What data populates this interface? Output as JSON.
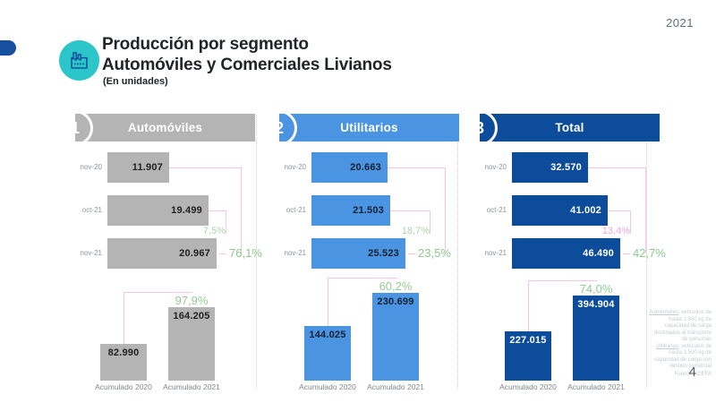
{
  "meta": {
    "year_badge": "2021",
    "page_number": "4"
  },
  "header": {
    "title_line1": "Producción por segmento",
    "title_line2": "Automóviles y Comerciales Livianos",
    "subtitle": "(En unidades)",
    "icon": "factory-icon"
  },
  "colors": {
    "gray": "#b4b4b4",
    "blue": "#4a94e2",
    "dark_blue": "#0d4c9a",
    "teal": "#2cc5c9",
    "pink_line": "#f5c3e6",
    "green": "#8cc98c",
    "green_light": "#abd4ab",
    "pink_pct": "#efa9dc"
  },
  "chart_data": [
    {
      "segment": "Automóviles",
      "number": "1",
      "color": "#b4b4b4",
      "value_text_color": "#1f1f1f",
      "monthly": {
        "type": "bar",
        "orientation": "horizontal",
        "categories": [
          "nov-20",
          "oct-21",
          "nov-21"
        ],
        "values": [
          11907,
          19499,
          20967
        ],
        "value_labels": [
          "11.907",
          "19.499",
          "20.967"
        ],
        "changes": [
          {
            "label": "7,5%",
            "from": "oct-21",
            "to": "nov-21",
            "color": "#abd4ab"
          },
          {
            "label": "76,1%",
            "from": "nov-20",
            "to": "nov-21",
            "color": "#8cc98c"
          }
        ]
      },
      "accumulated": {
        "type": "bar",
        "orientation": "vertical",
        "categories": [
          "Acumulado 2020",
          "Acumulado 2021"
        ],
        "values": [
          82990,
          164205
        ],
        "value_labels": [
          "82.990",
          "164.205"
        ],
        "change": {
          "label": "97,9%",
          "from": "Acumulado 2020",
          "to": "Acumulado 2021",
          "color": "#93cd93"
        }
      }
    },
    {
      "segment": "Utilitarios",
      "number": "2",
      "color": "#4a94e2",
      "value_text_color": "#13202e",
      "monthly": {
        "type": "bar",
        "orientation": "horizontal",
        "categories": [
          "nov-20",
          "oct-21",
          "nov-21"
        ],
        "values": [
          20663,
          21503,
          25523
        ],
        "value_labels": [
          "20.663",
          "21.503",
          "25.523"
        ],
        "changes": [
          {
            "label": "18,7%",
            "from": "oct-21",
            "to": "nov-21",
            "color": "#abd4ab"
          },
          {
            "label": "23,5%",
            "from": "nov-20",
            "to": "nov-21",
            "color": "#8cc98c"
          }
        ]
      },
      "accumulated": {
        "type": "bar",
        "orientation": "vertical",
        "categories": [
          "Acumulado 2020",
          "Acumulado 2021"
        ],
        "values": [
          144025,
          230699
        ],
        "value_labels": [
          "144.025",
          "230.699"
        ],
        "change": {
          "label": "60,2%",
          "from": "Acumulado 2020",
          "to": "Acumulado 2021",
          "color": "#93cd93"
        }
      }
    },
    {
      "segment": "Total",
      "number": "3",
      "color": "#0d4c9a",
      "value_text_color": "#ffffff",
      "monthly": {
        "type": "bar",
        "orientation": "horizontal",
        "categories": [
          "nov-20",
          "oct-21",
          "nov-21"
        ],
        "values": [
          32570,
          41002,
          46490
        ],
        "value_labels": [
          "32.570",
          "41.002",
          "46.490"
        ],
        "changes": [
          {
            "label": "13,4%",
            "from": "oct-21",
            "to": "nov-21",
            "color": "#efa9dc"
          },
          {
            "label": "42,7%",
            "from": "nov-20",
            "to": "nov-21",
            "color": "#8cc98c"
          }
        ]
      },
      "accumulated": {
        "type": "bar",
        "orientation": "vertical",
        "categories": [
          "Acumulado 2020",
          "Acumulado 2021"
        ],
        "values": [
          227015,
          394904
        ],
        "value_labels": [
          "227.015",
          "394.904"
        ],
        "change": {
          "label": "74,0%",
          "from": "Acumulado 2020",
          "to": "Acumulado 2021",
          "color": "#93cd93"
        }
      }
    }
  ],
  "footnote": {
    "items": [
      {
        "term": "Automóviles",
        "text": ": vehículos de hasta 1.500 kg de capacidad de carga destinados al transporte de personas"
      },
      {
        "term": "Utilitarios",
        "text": ": vehículos de hasta 1.500 kg de capacidad de carga con destino comercial"
      }
    ],
    "source": "Fuente: ADEFA"
  }
}
